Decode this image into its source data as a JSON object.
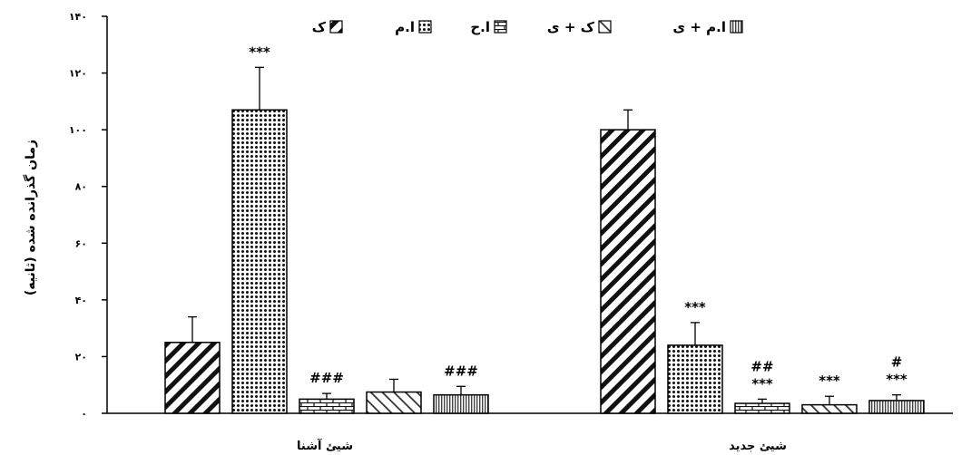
{
  "chart_data": {
    "type": "bar",
    "ylabel": "زمان گذرانده شده (ثانیه)",
    "ylim": [
      0,
      140
    ],
    "yticks": [
      {
        "value": 0,
        "label": "۰"
      },
      {
        "value": 20,
        "label": "۲۰"
      },
      {
        "value": 40,
        "label": "۴۰"
      },
      {
        "value": 60,
        "label": "۶۰"
      },
      {
        "value": 80,
        "label": "۸۰"
      },
      {
        "value": 100,
        "label": "۱۰۰"
      },
      {
        "value": 120,
        "label": "۱۲۰"
      },
      {
        "value": 140,
        "label": "۱۴۰"
      }
    ],
    "categories": [
      "شیئ آشنا",
      "شیئ جدید"
    ],
    "legend_position": "top",
    "series": [
      {
        "name": "ک",
        "pattern": "diag-thick",
        "values": [
          25,
          100
        ],
        "errors": [
          9,
          7
        ],
        "annotations": [
          [],
          []
        ]
      },
      {
        "name": "ا.م",
        "pattern": "dots",
        "values": [
          107,
          24
        ],
        "errors": [
          15,
          8
        ],
        "annotations": [
          [
            "***"
          ],
          [
            "***"
          ]
        ]
      },
      {
        "name": "ا.ح",
        "pattern": "brick",
        "values": [
          5,
          3.5
        ],
        "errors": [
          2,
          1.5
        ],
        "annotations": [
          [
            "###"
          ],
          [
            "***",
            "##"
          ]
        ]
      },
      {
        "name": "ک + ی",
        "pattern": "diag-thin",
        "values": [
          7.5,
          3
        ],
        "errors": [
          4.5,
          3
        ],
        "annotations": [
          [],
          [
            "***"
          ]
        ]
      },
      {
        "name": "ا.م + ی",
        "pattern": "vlines",
        "values": [
          6.5,
          4.5
        ],
        "errors": [
          3,
          2
        ],
        "annotations": [
          [
            "###"
          ],
          [
            "***",
            "#"
          ]
        ]
      }
    ]
  }
}
